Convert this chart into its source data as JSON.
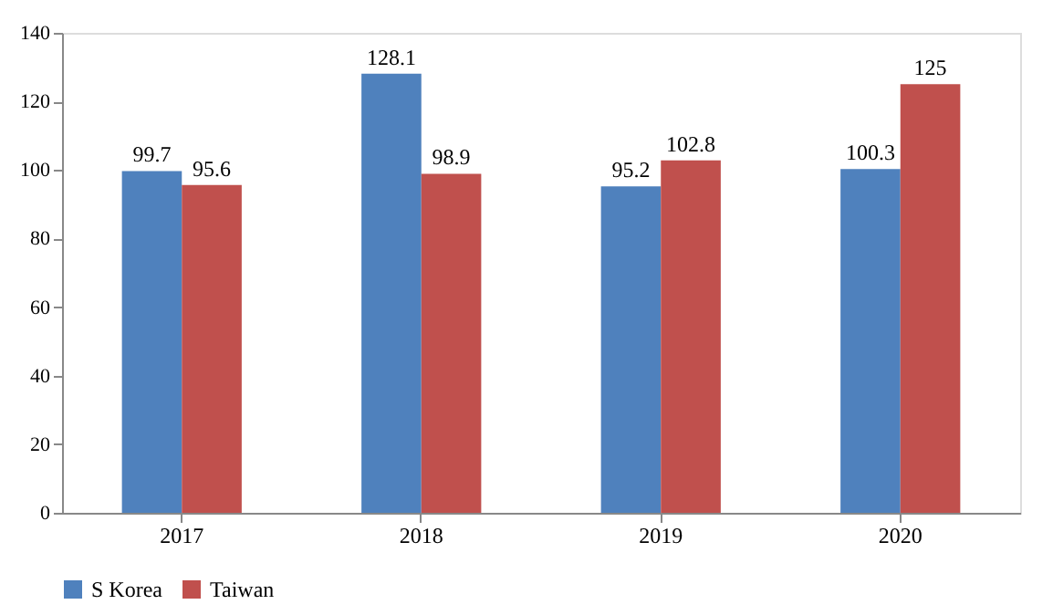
{
  "chart_data": {
    "type": "bar",
    "categories": [
      "2017",
      "2018",
      "2019",
      "2020"
    ],
    "series": [
      {
        "name": "S Korea",
        "color": "#4f81bd",
        "values": [
          99.7,
          128.1,
          95.2,
          100.3
        ]
      },
      {
        "name": "Taiwan",
        "color": "#c0504d",
        "values": [
          95.6,
          98.9,
          102.8,
          125
        ]
      }
    ],
    "ylim": [
      0,
      140
    ],
    "yticks": [
      0,
      20,
      40,
      60,
      80,
      100,
      120,
      140
    ],
    "grid": false,
    "legend": "bottom",
    "data_labels": true
  }
}
